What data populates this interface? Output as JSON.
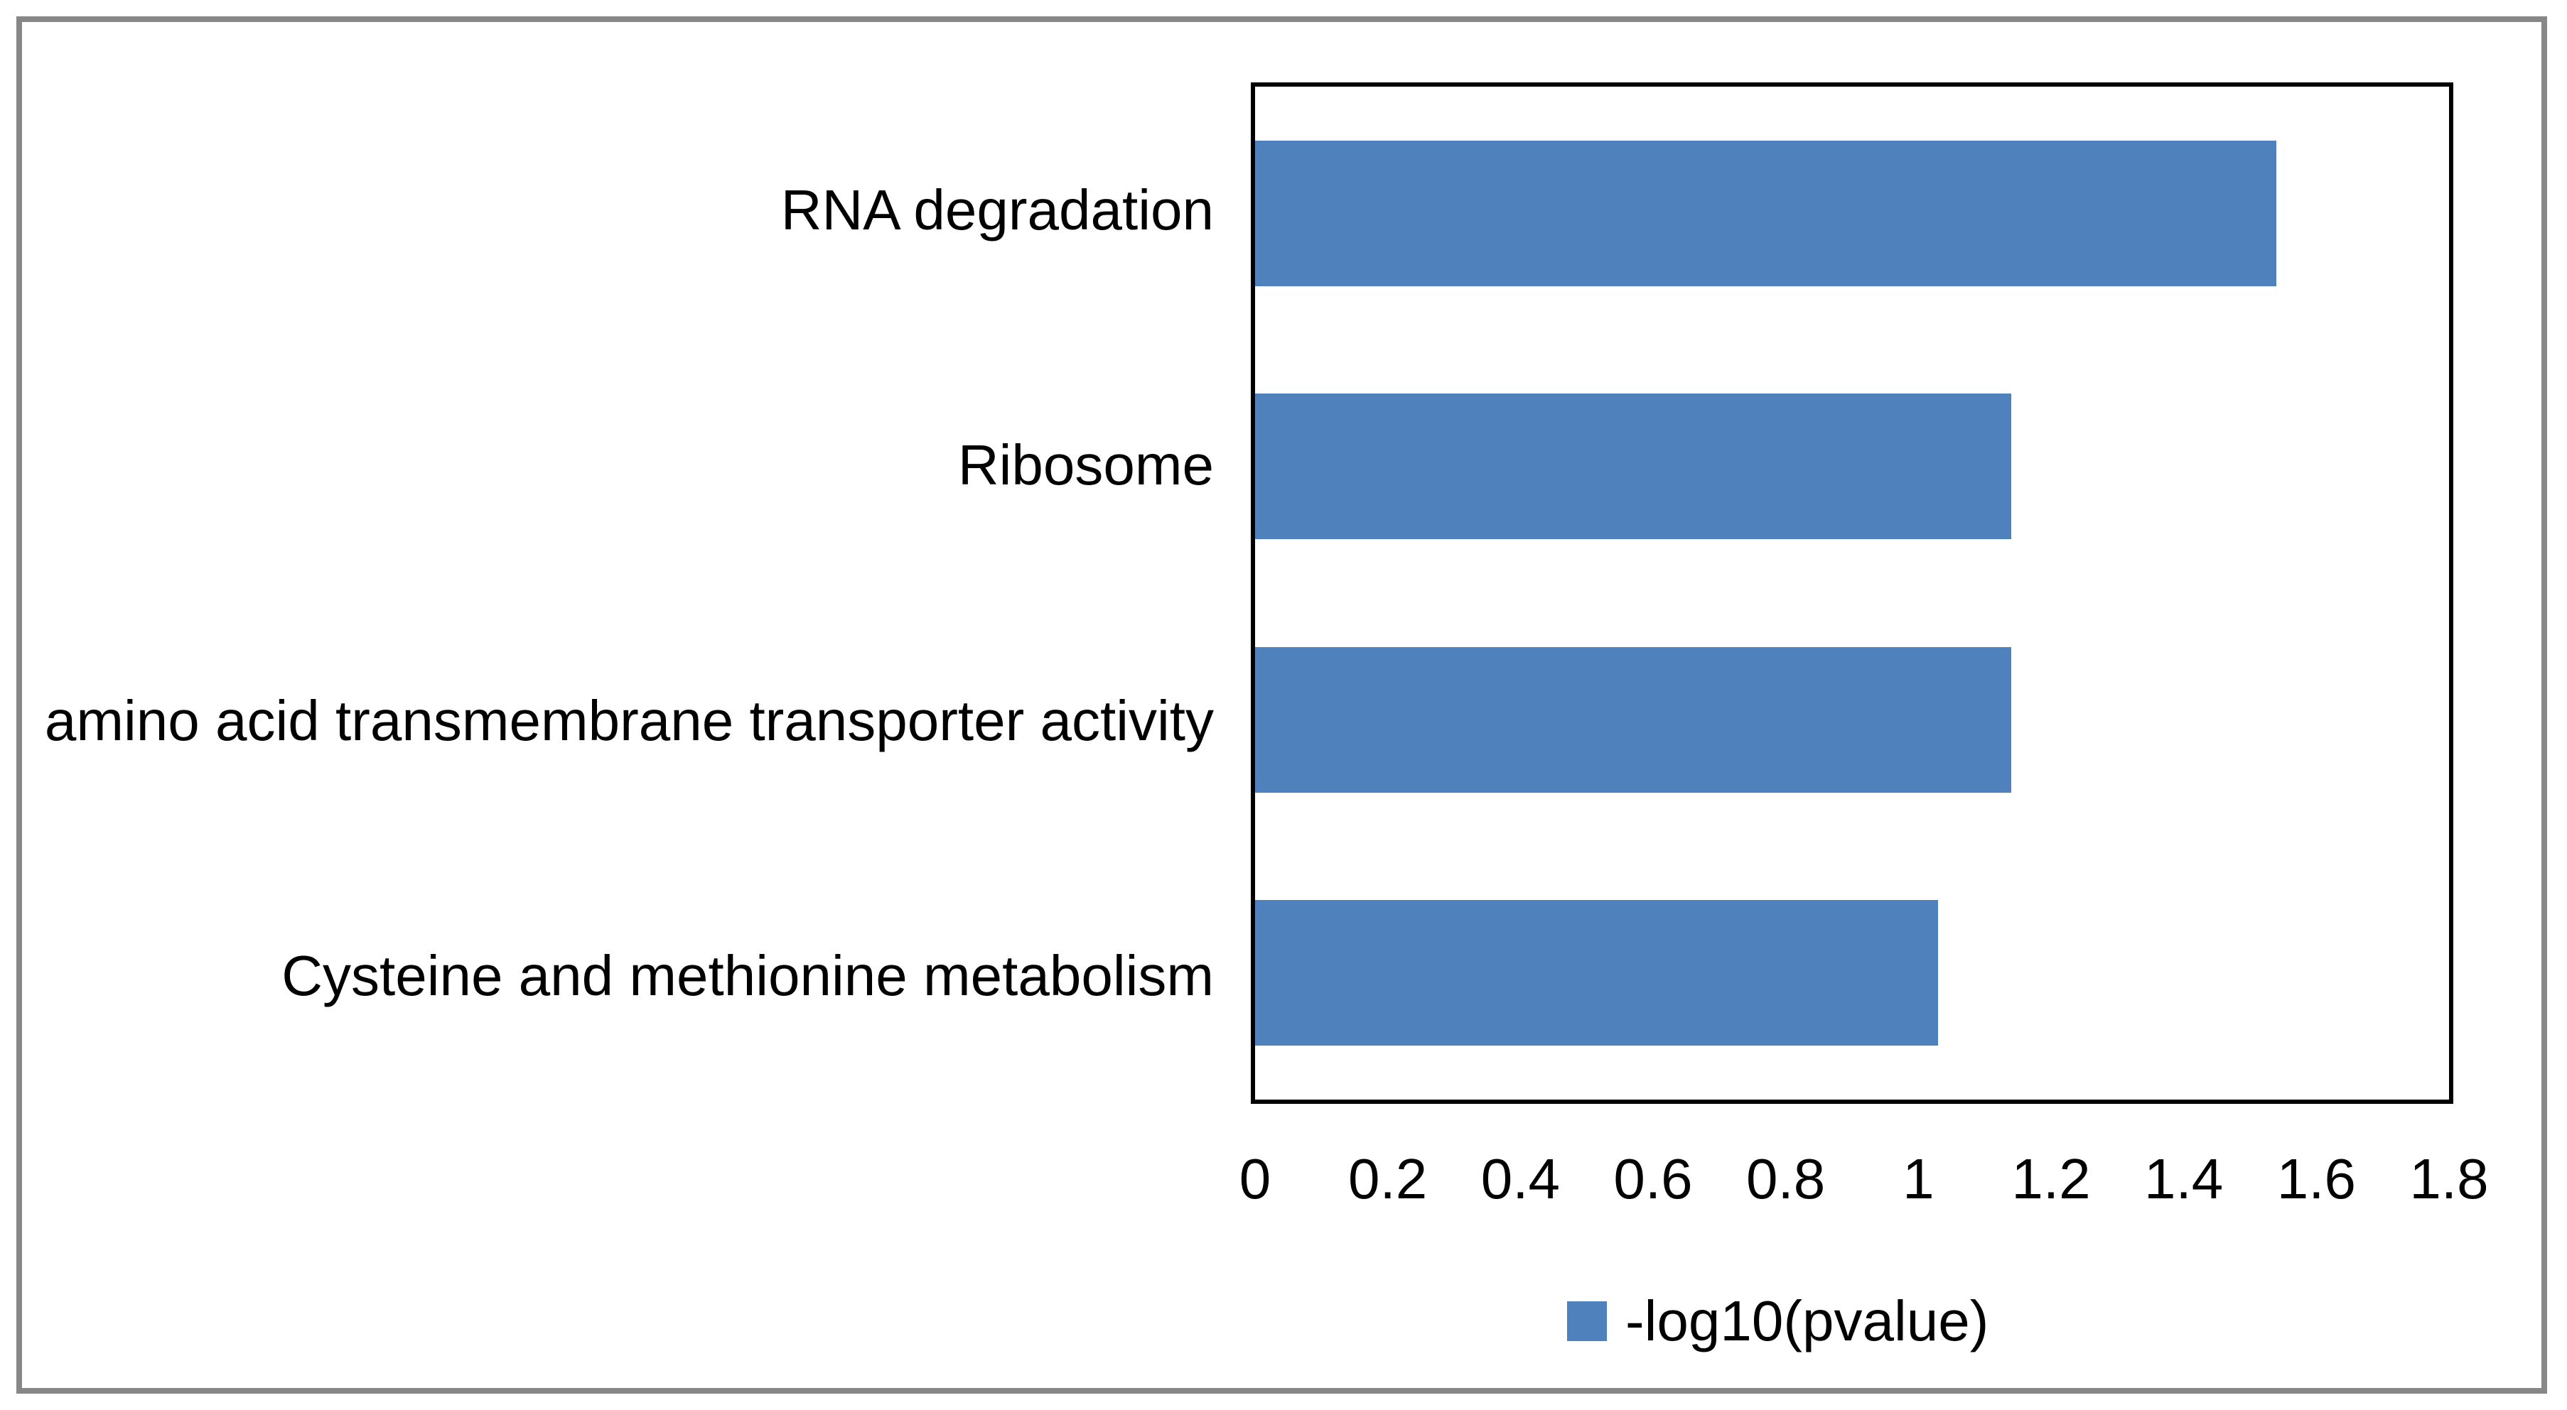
{
  "chart_data": {
    "type": "bar",
    "orientation": "horizontal",
    "title": "",
    "xlabel": "",
    "ylabel": "",
    "categories": [
      "RNA degradation",
      "Ribosome",
      "amino acid transmembrane transporter activity",
      "Cysteine and methionine metabolism"
    ],
    "series": [
      {
        "name": "-log10(pvalue)",
        "values": [
          1.54,
          1.14,
          1.14,
          1.03
        ]
      }
    ],
    "xlim": [
      0,
      1.8
    ],
    "x_ticks": [
      "0",
      "0.2",
      "0.4",
      "0.6",
      "0.8",
      "1",
      "1.2",
      "1.4",
      "1.6",
      "1.8"
    ],
    "grid": false,
    "legend_position": "bottom-center",
    "bar_color": "#4F81BD"
  },
  "legend": {
    "label": "-log10(pvalue)",
    "marker_color": "#4F81BD"
  },
  "colors": {
    "bar": "#4F81BD",
    "plot_border": "#000000",
    "outer_frame": "#878787",
    "background": "#FFFFFF",
    "text": "#000000"
  }
}
